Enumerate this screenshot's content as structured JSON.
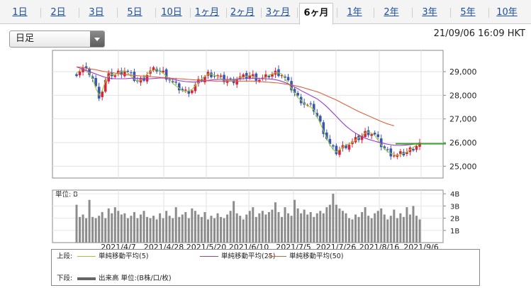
{
  "tabs": [
    {
      "label": "1日",
      "active": false
    },
    {
      "label": "2日",
      "active": false
    },
    {
      "label": "3日",
      "active": false
    },
    {
      "label": "5日",
      "active": false
    },
    {
      "label": "10日",
      "active": false
    },
    {
      "label": "1ヶ月",
      "active": false
    },
    {
      "label": "2ヶ月",
      "active": false
    },
    {
      "label": "3ヶ月",
      "active": false
    },
    {
      "label": "6ヶ月",
      "active": true
    },
    {
      "label": "1年",
      "active": false
    },
    {
      "label": "2年",
      "active": false
    },
    {
      "label": "3年",
      "active": false
    },
    {
      "label": "5年",
      "active": false
    },
    {
      "label": "10年",
      "active": false
    }
  ],
  "period_select": {
    "value": "日足"
  },
  "timestamp": "21/09/06 16:09 HKT",
  "colors": {
    "up": "#d9233b",
    "down": "#3a56b0",
    "ma5": "#9ccb3a",
    "ma25": "#9a3bd6",
    "ma50": "#e0603a",
    "current": "#3aa02e",
    "volume": "#8c8c8c"
  },
  "chart_data": [
    {
      "type": "line",
      "name": "price",
      "y_ticks": [
        "29,000",
        "28,000",
        "27,000",
        "26,000",
        "25,000"
      ],
      "ylim": [
        24500,
        29900
      ],
      "current_value": 25950,
      "x_ticks": [
        "2021/4/7",
        "2021/4/28",
        "2021/5/20",
        "2021/6/10",
        "2021/7/5",
        "2021/7/26",
        "2021/8/16",
        "2021/9/6"
      ],
      "series": [
        {
          "name": "単純移動平均(5)",
          "values": [
            28950,
            29050,
            29120,
            29000,
            28950,
            28700,
            28300,
            28000,
            28200,
            28600,
            28800,
            28900,
            28850,
            28950,
            29000,
            29050,
            28950,
            28800,
            28700,
            28600,
            28650,
            28750,
            28900,
            29000,
            29050,
            29100,
            29000,
            28950,
            28800,
            28700,
            28500,
            28400,
            28300,
            28200,
            28150,
            28200,
            28250,
            28400,
            28550,
            28700,
            28800,
            28900,
            28900,
            28850,
            28800,
            28700,
            28650,
            28650,
            28600,
            28650,
            28700,
            28750,
            28750,
            28800,
            28850,
            28800,
            28750,
            28700,
            28700,
            28750,
            28850,
            28900,
            28950,
            28950,
            28900,
            28700,
            28500,
            28300,
            28100,
            27900,
            27800,
            27650,
            27550,
            27500,
            27400,
            27100,
            26800,
            26500,
            26200,
            25900,
            25700,
            25600,
            25700,
            25800,
            25900,
            25950,
            26000,
            26100,
            26200,
            26300,
            26400,
            26450,
            26400,
            26300,
            26100,
            25900,
            25750,
            25600,
            25550,
            25500,
            25450,
            25500,
            25550,
            25600,
            25700,
            25800,
            25900,
            25950
          ]
        },
        {
          "name": "単純移動平均(25)",
          "values": [
            29200,
            29150,
            29100,
            29050,
            29000,
            28950,
            28900,
            28850,
            28800,
            28760,
            28730,
            28710,
            28700,
            28700,
            28700,
            28700,
            28710,
            28720,
            28720,
            28710,
            28700,
            28690,
            28690,
            28700,
            28710,
            28720,
            28730,
            28730,
            28720,
            28700,
            28680,
            28650,
            28620,
            28600,
            28580,
            28570,
            28560,
            28560,
            28570,
            28590,
            28610,
            28630,
            28650,
            28660,
            28670,
            28670,
            28670,
            28670,
            28670,
            28670,
            28680,
            28690,
            28700,
            28710,
            28720,
            28720,
            28720,
            28710,
            28700,
            28700,
            28690,
            28680,
            28660,
            28630,
            28590,
            28540,
            28480,
            28420,
            28350,
            28280,
            28200,
            28130,
            28060,
            27990,
            27920,
            27850,
            27750,
            27640,
            27520,
            27390,
            27250,
            27110,
            26970,
            26830,
            26700,
            26590,
            26490,
            26400,
            26320,
            26250,
            26190,
            26140,
            26100,
            26060,
            26020,
            25990,
            25960,
            25930,
            25910,
            25890,
            25880,
            25880,
            25890,
            25900,
            25910,
            25930,
            25950,
            25970
          ]
        },
        {
          "name": "単純移動平均(50)",
          "values": [
            29200,
            29190,
            29170,
            29150,
            29120,
            29100,
            29080,
            29050,
            29020,
            29000,
            28980,
            28960,
            28940,
            28920,
            28900,
            28880,
            28860,
            28850,
            28840,
            28830,
            28820,
            28810,
            28800,
            28790,
            28780,
            28770,
            28760,
            28750,
            28740,
            28730,
            28720,
            28710,
            28700,
            28690,
            28680,
            28670,
            28660,
            28650,
            28640,
            28630,
            28620,
            28610,
            28610,
            28600,
            28600,
            28600,
            28600,
            28600,
            28600,
            28600,
            28600,
            28600,
            28600,
            28600,
            28600,
            28600,
            28590,
            28580,
            28570,
            28560,
            28550,
            28540,
            28530,
            28520,
            28500,
            28480,
            28460,
            28440,
            28410,
            28380,
            28350,
            28310,
            28270,
            28230,
            28190,
            28150,
            28100,
            28040,
            27980,
            27920,
            27860,
            27800,
            27730,
            27660,
            27590,
            27520,
            27450,
            27380,
            27310,
            27250,
            27190,
            27130,
            27070,
            27010,
            26950,
            26890,
            26840,
            26790,
            26750,
            26710
          ]
        }
      ]
    },
    {
      "type": "bar",
      "name": "volume",
      "y_label": "単位: B",
      "y_ticks": [
        "4B",
        "3B",
        "2B",
        "1B"
      ],
      "ylim": [
        0,
        4.3
      ],
      "values": [
        3.1,
        2.1,
        2.3,
        2.0,
        3.5,
        2.1,
        2.0,
        2.2,
        2.5,
        2.0,
        2.8,
        2.4,
        2.9,
        2.6,
        2.3,
        2.4,
        2.0,
        2.2,
        2.5,
        2.0,
        2.3,
        2.6,
        2.1,
        2.0,
        2.2,
        1.9,
        2.4,
        2.0,
        2.6,
        2.2,
        2.0,
        2.9,
        2.1,
        2.3,
        2.5,
        2.0,
        2.8,
        2.6,
        2.3,
        2.1,
        2.5,
        1.9,
        2.2,
        2.0,
        2.4,
        2.1,
        2.0,
        2.3,
        2.6,
        3.4,
        2.4,
        2.2,
        1.9,
        2.3,
        2.6,
        2.9,
        2.1,
        2.4,
        2.6,
        2.3,
        2.5,
        2.7,
        3.3,
        2.5,
        2.1,
        2.9,
        2.4,
        2.2,
        3.5,
        2.8,
        2.4,
        2.7,
        2.3,
        2.5,
        2.1,
        2.4,
        2.6,
        2.4,
        2.9,
        3.1,
        4.0,
        3.1,
        2.8,
        2.6,
        2.4,
        2.0,
        1.9,
        2.3,
        2.1,
        2.5,
        2.9,
        2.2,
        2.0,
        2.4,
        2.6,
        2.8,
        2.3,
        1.9,
        2.2,
        2.7,
        2.0,
        2.4,
        2.1,
        2.9,
        2.3,
        3.0,
        2.2,
        1.9
      ]
    }
  ],
  "legend": {
    "upper_label": "上段:",
    "lower_label": "下段:",
    "ma5": "単純移動平均(5)",
    "ma25": "単純移動平均(25)",
    "ma50": "単純移動平均(50)",
    "volume": "出来高 単位:(B株/口/枚)"
  }
}
